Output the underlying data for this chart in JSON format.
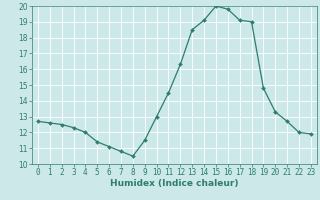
{
  "x": [
    0,
    1,
    2,
    3,
    4,
    5,
    6,
    7,
    8,
    9,
    10,
    11,
    12,
    13,
    14,
    15,
    16,
    17,
    18,
    19,
    20,
    21,
    22,
    23
  ],
  "y": [
    12.7,
    12.6,
    12.5,
    12.3,
    12.0,
    11.4,
    11.1,
    10.8,
    10.5,
    11.5,
    13.0,
    14.5,
    16.3,
    18.5,
    19.1,
    20.0,
    19.8,
    19.1,
    19.0,
    14.8,
    13.3,
    12.7,
    12.0,
    11.9
  ],
  "xlabel": "Humidex (Indice chaleur)",
  "ylim": [
    10,
    20
  ],
  "yticks": [
    10,
    11,
    12,
    13,
    14,
    15,
    16,
    17,
    18,
    19,
    20
  ],
  "xticks": [
    0,
    1,
    2,
    3,
    4,
    5,
    6,
    7,
    8,
    9,
    10,
    11,
    12,
    13,
    14,
    15,
    16,
    17,
    18,
    19,
    20,
    21,
    22,
    23
  ],
  "line_color": "#2e7d6e",
  "marker_color": "#2e7d6e",
  "bg_color": "#cce8e8",
  "grid_color": "#ffffff",
  "label_color": "#2e7d6e",
  "tick_fontsize": 5.5,
  "xlabel_fontsize": 6.5
}
